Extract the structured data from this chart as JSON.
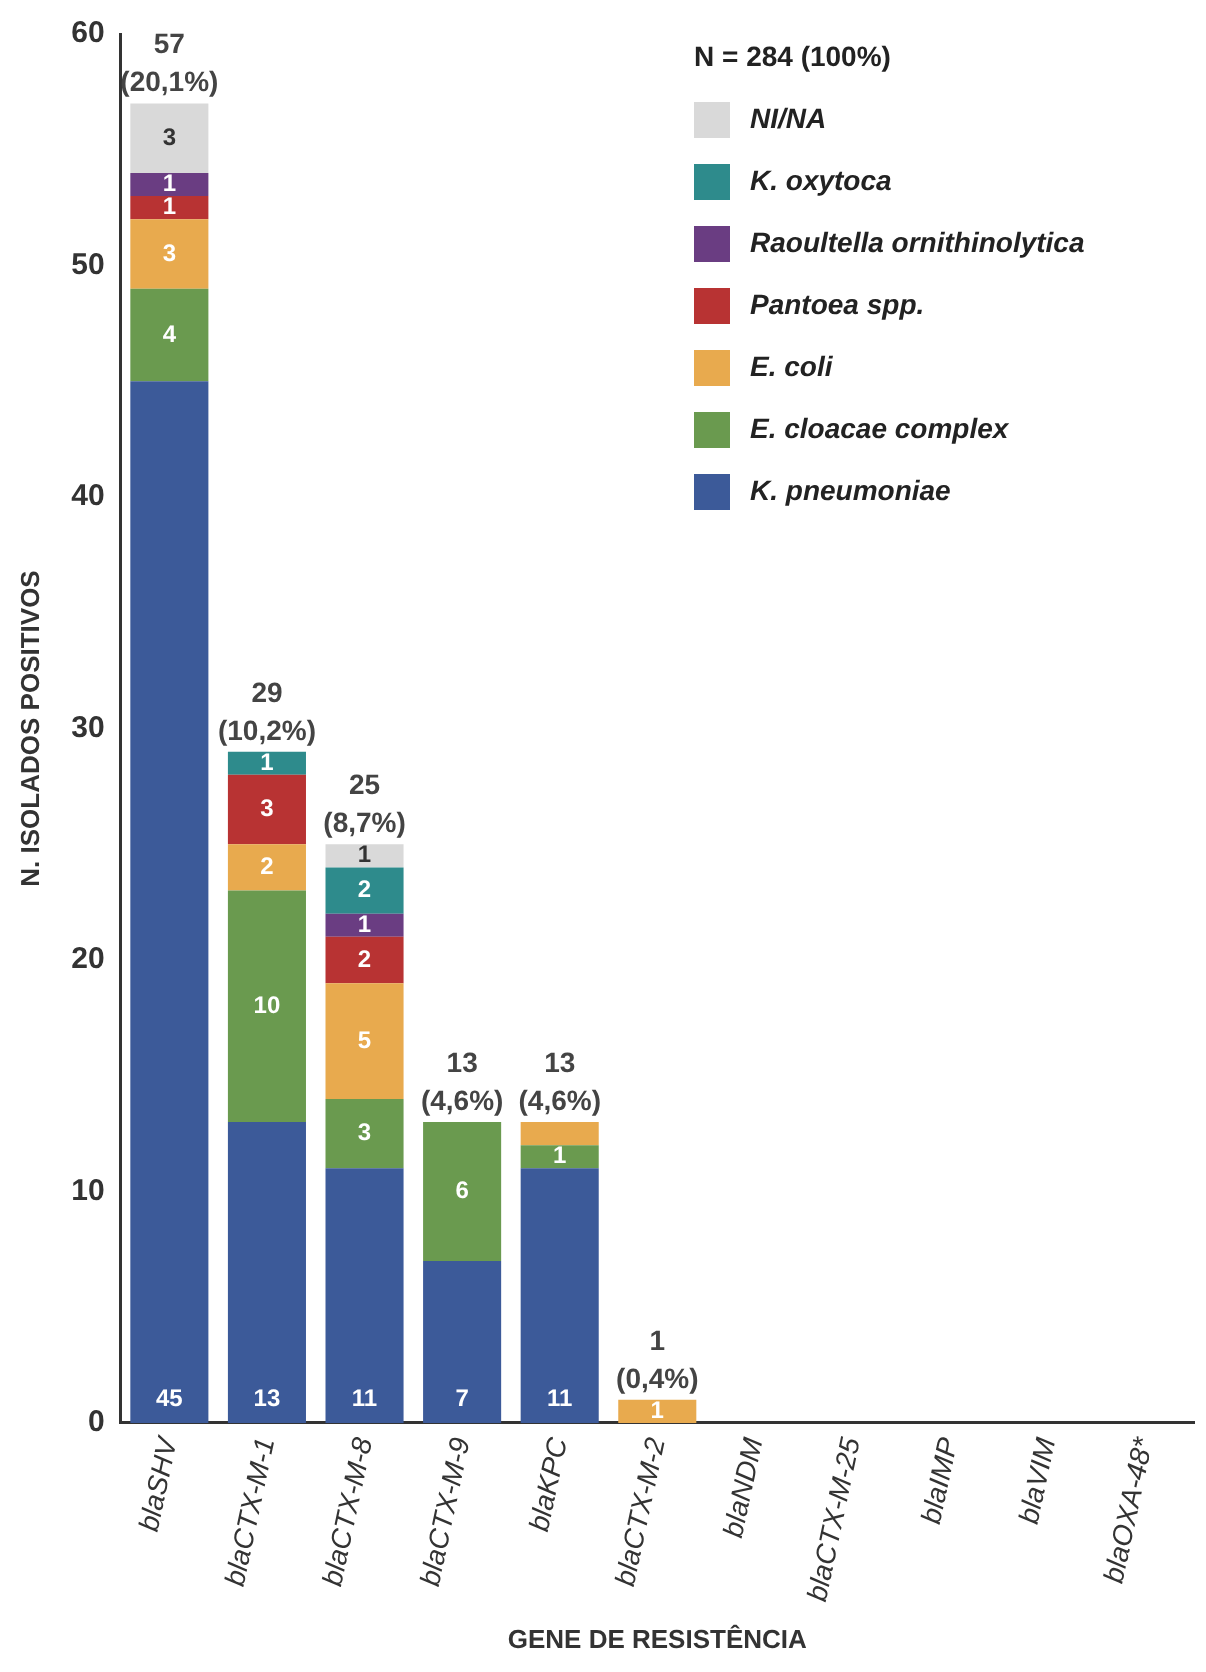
{
  "chart_data": {
    "type": "bar",
    "stacked": true,
    "xlabel": "GENE DE RESISTÊNCIA",
    "ylabel": "N. ISOLADOS POSITIVOS",
    "legend_title": "N = 284 (100%)",
    "legend": "top right",
    "grid": false,
    "categories": [
      "blaSHV",
      "blaCTX-M-1",
      "blaCTX-M-8",
      "blaCTX-M-9",
      "blaKPC",
      "blaCTX-M-2",
      "blaNDM",
      "blaCTX-M-25",
      "blaIMP",
      "blaVIM",
      "blaOXA-48*"
    ],
    "ylim": [
      0,
      60
    ],
    "yticks": [
      0,
      10,
      20,
      30,
      40,
      50,
      60
    ],
    "series": [
      {
        "name": "K. pneumoniae",
        "color": "#3c5a99",
        "values": [
          45,
          13,
          11,
          7,
          11,
          0,
          0,
          0,
          0,
          0,
          0
        ],
        "value_labels": [
          "45",
          "13",
          "11",
          "7",
          "11",
          null,
          null,
          null,
          null,
          null,
          null
        ]
      },
      {
        "name": "E. cloacae complex",
        "color": "#6a9a4f",
        "values": [
          4,
          10,
          3,
          6,
          1,
          0,
          0,
          0,
          0,
          0,
          0
        ],
        "value_labels": [
          "4",
          "10",
          "3",
          "6",
          "1",
          null,
          null,
          null,
          null,
          null,
          null
        ]
      },
      {
        "name": "E. coli",
        "color": "#e8aa4e",
        "values": [
          3,
          2,
          5,
          0,
          1,
          1,
          0,
          0,
          0,
          0,
          0
        ],
        "value_labels": [
          "3",
          "2",
          "5",
          null,
          null,
          "1",
          null,
          null,
          null,
          null,
          null
        ]
      },
      {
        "name": "Pantoea spp.",
        "color": "#b83333",
        "values": [
          1,
          3,
          2,
          0,
          0,
          0,
          0,
          0,
          0,
          0,
          0
        ],
        "value_labels": [
          "1",
          "3",
          "2",
          null,
          null,
          null,
          null,
          null,
          null,
          null,
          null
        ]
      },
      {
        "name": "Raoultella ornithinolytica",
        "color": "#6a3d82",
        "values": [
          1,
          0,
          1,
          0,
          0,
          0,
          0,
          0,
          0,
          0,
          0
        ],
        "value_labels": [
          "1",
          null,
          "1",
          null,
          null,
          null,
          null,
          null,
          null,
          null,
          null
        ]
      },
      {
        "name": "K. oxytoca",
        "color": "#2e8b8c",
        "values": [
          0,
          1,
          2,
          0,
          0,
          0,
          0,
          0,
          0,
          0,
          0
        ],
        "value_labels": [
          null,
          "1",
          "2",
          null,
          null,
          null,
          null,
          null,
          null,
          null,
          null
        ]
      },
      {
        "name": "NI/NA",
        "color": "#d9d9d9",
        "values": [
          3,
          0,
          1,
          0,
          0,
          0,
          0,
          0,
          0,
          0,
          0
        ],
        "value_labels": [
          "3",
          null,
          "1",
          null,
          null,
          null,
          null,
          null,
          null,
          null,
          null
        ]
      }
    ],
    "totals": [
      "57 (20,1%)",
      "29 (10,2%)",
      "25 (8,7%)",
      "13 (4,6%)",
      "13 (4,6%)",
      "1 (0,4%)",
      null,
      null,
      null,
      null,
      null
    ]
  }
}
